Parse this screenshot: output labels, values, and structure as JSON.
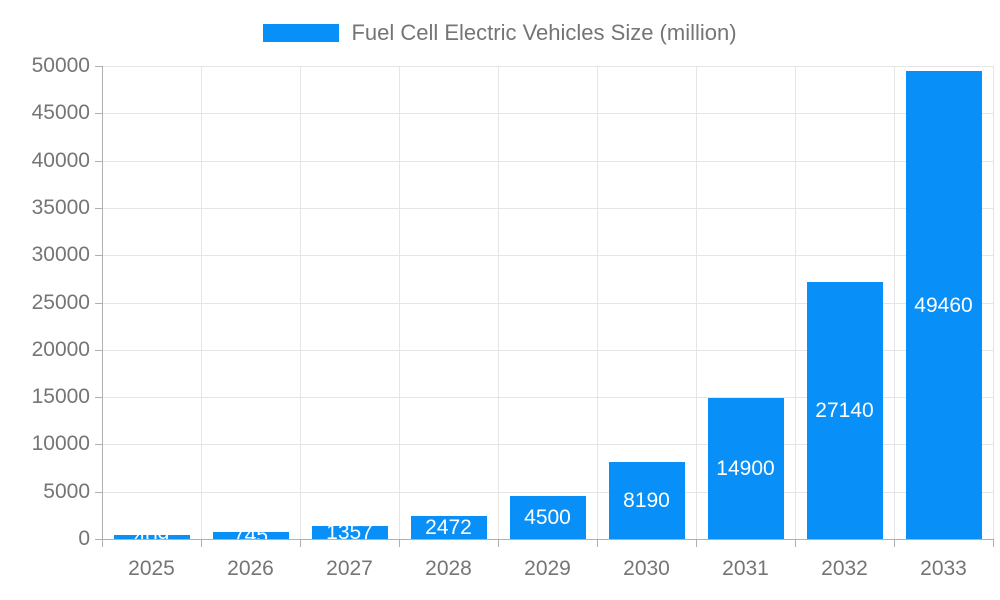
{
  "chart_data": {
    "type": "bar",
    "title": "",
    "legend": {
      "label": "Fuel Cell Electric Vehicles Size (million)",
      "position": "top"
    },
    "categories": [
      "2025",
      "2026",
      "2027",
      "2028",
      "2029",
      "2030",
      "2031",
      "2032",
      "2033"
    ],
    "series": [
      {
        "name": "Fuel Cell Electric Vehicles Size (million)",
        "values": [
          409,
          745,
          1357,
          2472,
          4500,
          8190,
          14900,
          27140,
          49460
        ]
      }
    ],
    "data_labels": [
      "409",
      "745",
      "1357",
      "2472",
      "4500",
      "8190",
      "14900",
      "27140",
      "49460"
    ],
    "xlabel": "",
    "ylabel": "",
    "ylim": [
      0,
      50000
    ],
    "ytick_step": 5000,
    "yticks": [
      0,
      5000,
      10000,
      15000,
      20000,
      25000,
      30000,
      35000,
      40000,
      45000,
      50000
    ],
    "grid": true,
    "legend_position": "top",
    "colors": {
      "bar": "#0890f8",
      "bar_value_text": "#ffffff",
      "axis_text": "#757575",
      "gridline": "#e5e5e5",
      "axis_line": "#b0b0b0"
    }
  },
  "layout_note": "bar chart, vertical, single series, value labels centered inside bars"
}
